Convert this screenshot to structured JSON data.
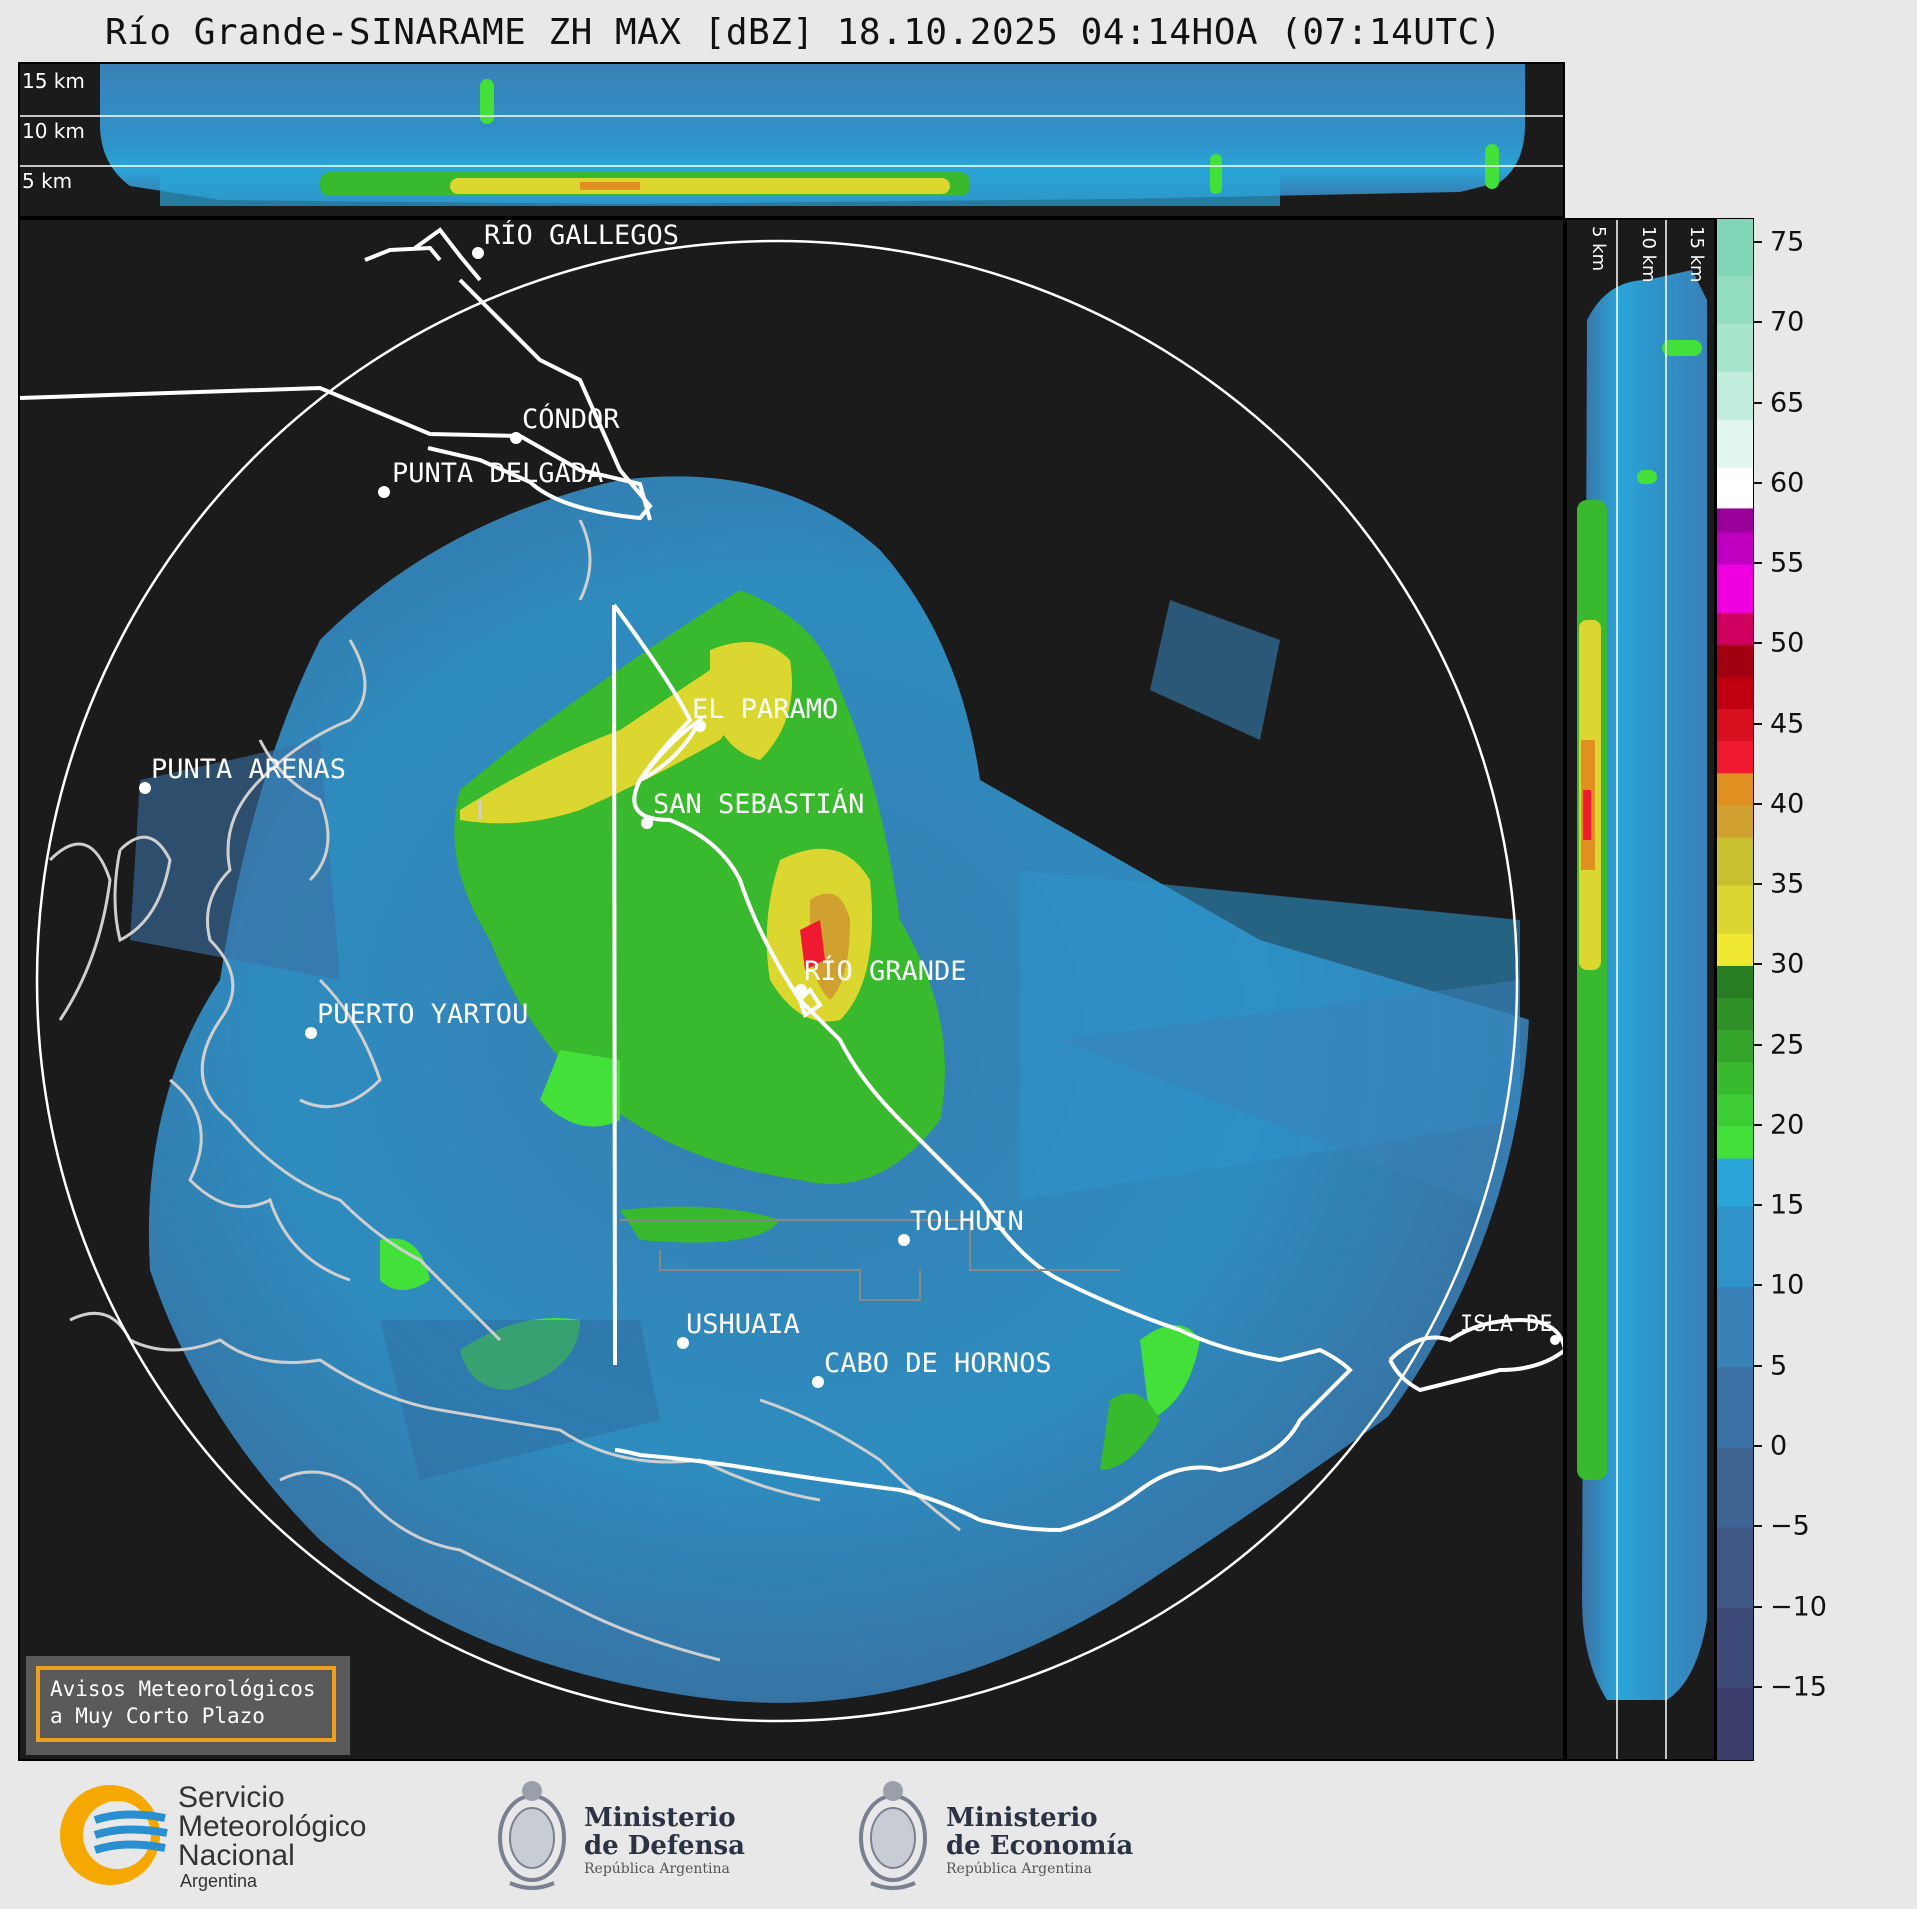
{
  "title": "Río Grande-SINARAME ZH MAX [dBZ] 18.10.2025 04:14HOA (07:14UTC)",
  "top_panel": {
    "height_labels": [
      "15 km",
      "10 km",
      "5 km"
    ]
  },
  "side_panel": {
    "height_labels": [
      "5 km",
      "10 km",
      "15 km"
    ]
  },
  "colorbar": {
    "unit": "dBZ",
    "ticks": [
      "75",
      "70",
      "65",
      "60",
      "55",
      "50",
      "45",
      "40",
      "35",
      "30",
      "25",
      "20",
      "15",
      "10",
      "5",
      "0",
      "−5",
      "−10",
      "−15"
    ],
    "range": [
      -19.5,
      76.5
    ],
    "bands": [
      {
        "from": -19.5,
        "to": -15,
        "color": "#3b3e6b"
      },
      {
        "from": -15,
        "to": -10,
        "color": "#3d4a78"
      },
      {
        "from": -10,
        "to": -5,
        "color": "#3e5785"
      },
      {
        "from": -5,
        "to": 0,
        "color": "#3c6391"
      },
      {
        "from": 0,
        "to": 5,
        "color": "#3b72a5"
      },
      {
        "from": 5,
        "to": 10,
        "color": "#3982b8"
      },
      {
        "from": 10,
        "to": 15,
        "color": "#2f92c8"
      },
      {
        "from": 15,
        "to": 18,
        "color": "#2aa5d8"
      },
      {
        "from": 18,
        "to": 20,
        "color": "#43e03a"
      },
      {
        "from": 20,
        "to": 22,
        "color": "#3ccc33"
      },
      {
        "from": 22,
        "to": 24,
        "color": "#38b92e"
      },
      {
        "from": 24,
        "to": 26,
        "color": "#34a52a"
      },
      {
        "from": 26,
        "to": 28,
        "color": "#2e9026"
      },
      {
        "from": 28,
        "to": 30,
        "color": "#287d22"
      },
      {
        "from": 30,
        "to": 32,
        "color": "#f0e830"
      },
      {
        "from": 32,
        "to": 35,
        "color": "#dcd630"
      },
      {
        "from": 35,
        "to": 38,
        "color": "#c9c030"
      },
      {
        "from": 38,
        "to": 40,
        "color": "#d0a030"
      },
      {
        "from": 40,
        "to": 42,
        "color": "#e09020"
      },
      {
        "from": 42,
        "to": 44,
        "color": "#f01a30"
      },
      {
        "from": 44,
        "to": 46,
        "color": "#d81020"
      },
      {
        "from": 46,
        "to": 48,
        "color": "#c00010"
      },
      {
        "from": 48,
        "to": 50,
        "color": "#a00010"
      },
      {
        "from": 50,
        "to": 52,
        "color": "#d00060"
      },
      {
        "from": 52,
        "to": 55,
        "color": "#f000e0"
      },
      {
        "from": 55,
        "to": 57,
        "color": "#c000c0"
      },
      {
        "from": 57,
        "to": 58.5,
        "color": "#9a009a"
      },
      {
        "from": 58.5,
        "to": 61,
        "color": "#ffffff"
      },
      {
        "from": 61,
        "to": 64,
        "color": "#e0f6ee"
      },
      {
        "from": 64,
        "to": 67,
        "color": "#c2ecdc"
      },
      {
        "from": 67,
        "to": 70,
        "color": "#a6e4cc"
      },
      {
        "from": 70,
        "to": 73,
        "color": "#92dcc0"
      },
      {
        "from": 73,
        "to": 76.5,
        "color": "#80d6b6"
      }
    ]
  },
  "map": {
    "places": [
      {
        "name": "RÍO GALLEGOS"
      },
      {
        "name": "CÓNDOR"
      },
      {
        "name": "PUNTA DELGADA"
      },
      {
        "name": "PUNTA ARENAS"
      },
      {
        "name": "EL PARAMO"
      },
      {
        "name": "SAN SEBASTIÁN"
      },
      {
        "name": "RÍO GRANDE"
      },
      {
        "name": "PUERTO YARTOU"
      },
      {
        "name": "TOLHUIN"
      },
      {
        "name": "USHUAIA"
      },
      {
        "name": "CABO DE HORNOS"
      },
      {
        "name": "ISLA DE LOS ESTADOS"
      }
    ]
  },
  "alert_box": {
    "line1": "Avisos Meteorológicos",
    "line2": "a Muy Corto Plazo"
  },
  "footer": {
    "smn": {
      "line1": "Servicio",
      "line2": "Meteorológico",
      "line3": "Nacional",
      "line4": "Argentina"
    },
    "defensa": {
      "line1": "Ministerio",
      "line2": "de Defensa",
      "line3": "República Argentina"
    },
    "economia": {
      "line1": "Ministerio",
      "line2": "de Economía",
      "line3": "República Argentina"
    }
  }
}
